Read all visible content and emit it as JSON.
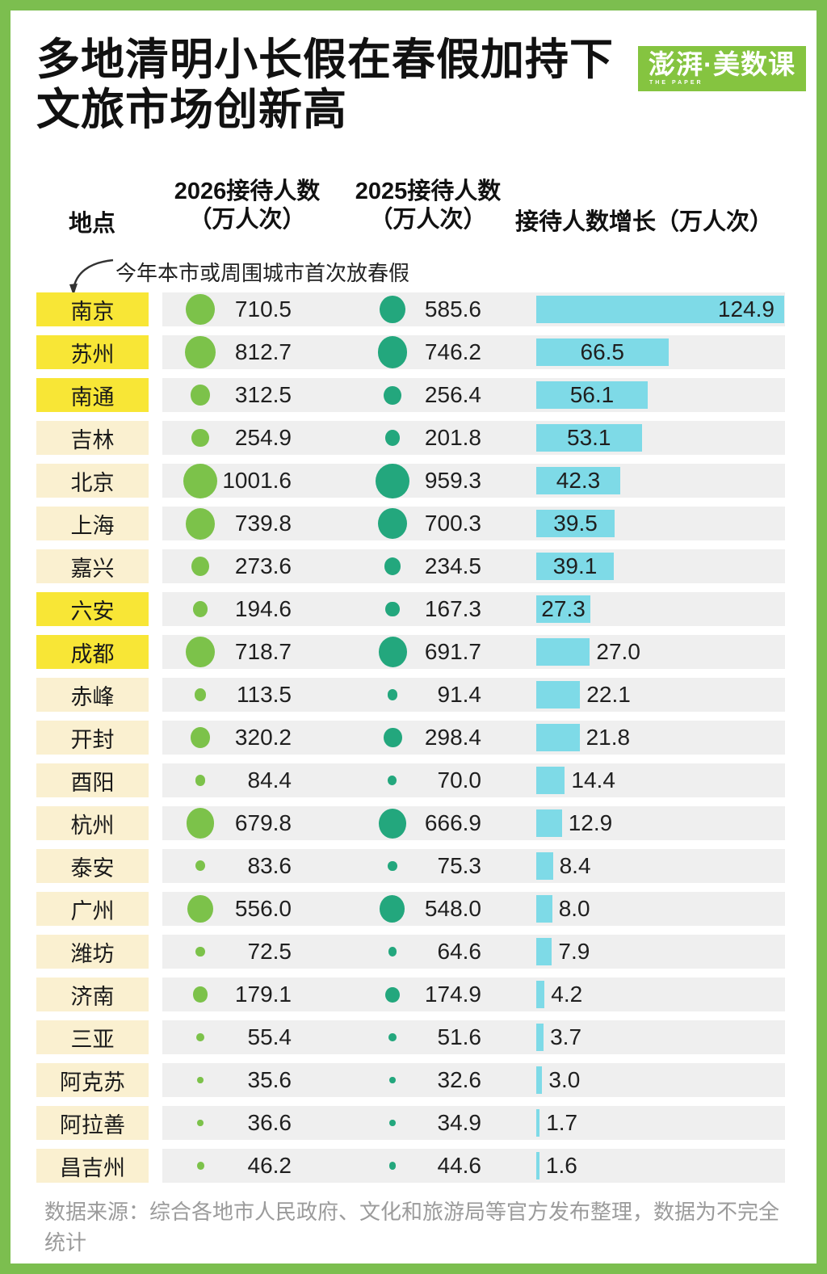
{
  "page": {
    "title_line1": "多地清明小长假在春假加持下",
    "title_line2": "文旅市场创新高",
    "logo_cn": "澎湃·美数课",
    "logo_en": "THE PAPER",
    "annotation": "今年本市或周围城市首次放春假",
    "source": "数据来源：综合各地市人民政府、文化和旅游局等官方发布整理，数据为不完全统计"
  },
  "headers": {
    "location": "地点",
    "y2026_line1": "2026接待人数",
    "y2026_line2": "（万人次）",
    "y2025_line1": "2025接待人数",
    "y2025_line2": "（万人次）",
    "growth": "接待人数增长（万人次）"
  },
  "colors": {
    "frame_green": "#7CBE4F",
    "logo_green": "#85C440",
    "highlight_yellow": "#F8E636",
    "label_cream": "#FAF0D0",
    "row_gray": "#EFEFEF",
    "dot_2026_green": "#7CC24A",
    "dot_2025_teal": "#23A77D",
    "bar_cyan": "#7EDAE7",
    "text_dark": "#1F1F1F",
    "source_gray": "#9B9B9B"
  },
  "chart_data": {
    "type": "bar",
    "title": "多地清明小长假在春假加持下文旅市场创新高",
    "columns": [
      "地点",
      "2026接待人数（万人次）",
      "2025接待人数（万人次）",
      "接待人数增长（万人次）"
    ],
    "annotation": "今年本市或周围城市首次放春假",
    "highlight_meaning": "黄色高亮地点：今年本市或周围城市首次放春假",
    "xlim_growth": [
      0,
      124.9
    ],
    "legend": "off",
    "grid": "off",
    "rows": [
      {
        "city": "南京",
        "v2026": "710.5",
        "v2025": "585.6",
        "growth": "124.9",
        "highlight": true,
        "label_pos": "inside-right"
      },
      {
        "city": "苏州",
        "v2026": "812.7",
        "v2025": "746.2",
        "growth": "66.5",
        "highlight": true,
        "label_pos": "inside-center"
      },
      {
        "city": "南通",
        "v2026": "312.5",
        "v2025": "256.4",
        "growth": "56.1",
        "highlight": true,
        "label_pos": "inside-center"
      },
      {
        "city": "吉林",
        "v2026": "254.9",
        "v2025": "201.8",
        "growth": "53.1",
        "highlight": false,
        "label_pos": "inside-center"
      },
      {
        "city": "北京",
        "v2026": "1001.6",
        "v2025": "959.3",
        "growth": "42.3",
        "highlight": false,
        "label_pos": "inside-center"
      },
      {
        "city": "上海",
        "v2026": "739.8",
        "v2025": "700.3",
        "growth": "39.5",
        "highlight": false,
        "label_pos": "inside-center"
      },
      {
        "city": "嘉兴",
        "v2026": "273.6",
        "v2025": "234.5",
        "growth": "39.1",
        "highlight": false,
        "label_pos": "inside-center"
      },
      {
        "city": "六安",
        "v2026": "194.6",
        "v2025": "167.3",
        "growth": "27.3",
        "highlight": true,
        "label_pos": "inside-center"
      },
      {
        "city": "成都",
        "v2026": "718.7",
        "v2025": "691.7",
        "growth": "27.0",
        "highlight": true,
        "label_pos": "outside"
      },
      {
        "city": "赤峰",
        "v2026": "113.5",
        "v2025": "91.4",
        "growth": "22.1",
        "highlight": false,
        "label_pos": "outside"
      },
      {
        "city": "开封",
        "v2026": "320.2",
        "v2025": "298.4",
        "growth": "21.8",
        "highlight": false,
        "label_pos": "outside"
      },
      {
        "city": "酉阳",
        "v2026": "84.4",
        "v2025": "70.0",
        "growth": "14.4",
        "highlight": false,
        "label_pos": "outside"
      },
      {
        "city": "杭州",
        "v2026": "679.8",
        "v2025": "666.9",
        "growth": "12.9",
        "highlight": false,
        "label_pos": "outside"
      },
      {
        "city": "泰安",
        "v2026": "83.6",
        "v2025": "75.3",
        "growth": "8.4",
        "highlight": false,
        "label_pos": "outside"
      },
      {
        "city": "广州",
        "v2026": "556.0",
        "v2025": "548.0",
        "growth": "8.0",
        "highlight": false,
        "label_pos": "outside"
      },
      {
        "city": "潍坊",
        "v2026": "72.5",
        "v2025": "64.6",
        "growth": "7.9",
        "highlight": false,
        "label_pos": "outside"
      },
      {
        "city": "济南",
        "v2026": "179.1",
        "v2025": "174.9",
        "growth": "4.2",
        "highlight": false,
        "label_pos": "outside"
      },
      {
        "city": "三亚",
        "v2026": "55.4",
        "v2025": "51.6",
        "growth": "3.7",
        "highlight": false,
        "label_pos": "outside"
      },
      {
        "city": "阿克苏",
        "v2026": "35.6",
        "v2025": "32.6",
        "growth": "3.0",
        "highlight": false,
        "label_pos": "outside"
      },
      {
        "city": "阿拉善",
        "v2026": "36.6",
        "v2025": "34.9",
        "growth": "1.7",
        "highlight": false,
        "label_pos": "outside"
      },
      {
        "city": "昌吉州",
        "v2026": "46.2",
        "v2025": "44.6",
        "growth": "1.6",
        "highlight": false,
        "label_pos": "outside"
      }
    ]
  }
}
